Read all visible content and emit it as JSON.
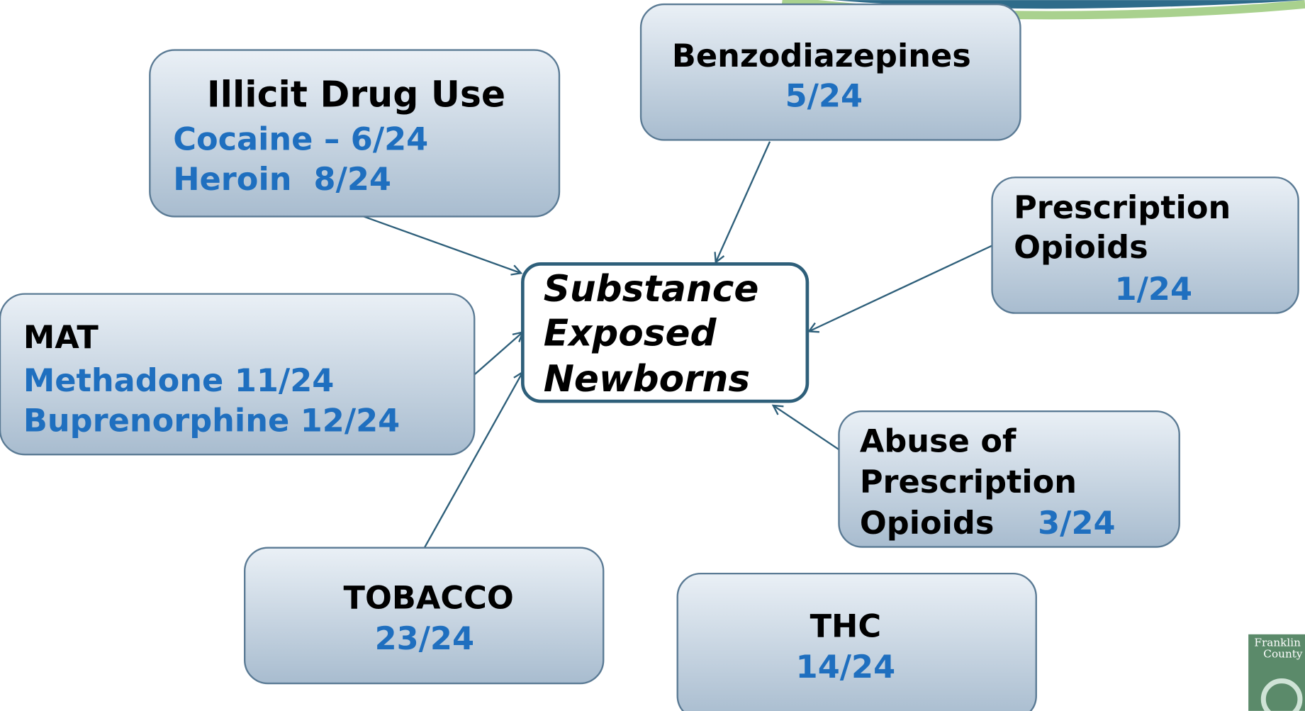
{
  "center": {
    "lines": [
      "Substance",
      "Exposed",
      "Newborns"
    ]
  },
  "nodes": [
    {
      "title": [
        "Illicit Drug Use"
      ],
      "items": [
        "Cocaine – 6/24",
        "Heroin  8/24"
      ]
    },
    {
      "title": [
        "Benzodiazepines"
      ],
      "items": [
        "5/24"
      ]
    },
    {
      "title": [
        "Prescription",
        "Opioids"
      ],
      "items": [
        "1/24"
      ]
    },
    {
      "title": [
        "MAT"
      ],
      "items": [
        "Methadone 11/24",
        "Buprenorphine 12/24"
      ]
    },
    {
      "title": [
        "Abuse of",
        "Prescription",
        "Opioids"
      ],
      "items": [
        "3/24"
      ]
    },
    {
      "title": [
        "TOBACCO"
      ],
      "items": [
        "23/24"
      ]
    },
    {
      "title": [
        "THC"
      ],
      "items": [
        "14/24"
      ]
    }
  ],
  "logo": {
    "lines": [
      "Franklin",
      "County"
    ]
  }
}
